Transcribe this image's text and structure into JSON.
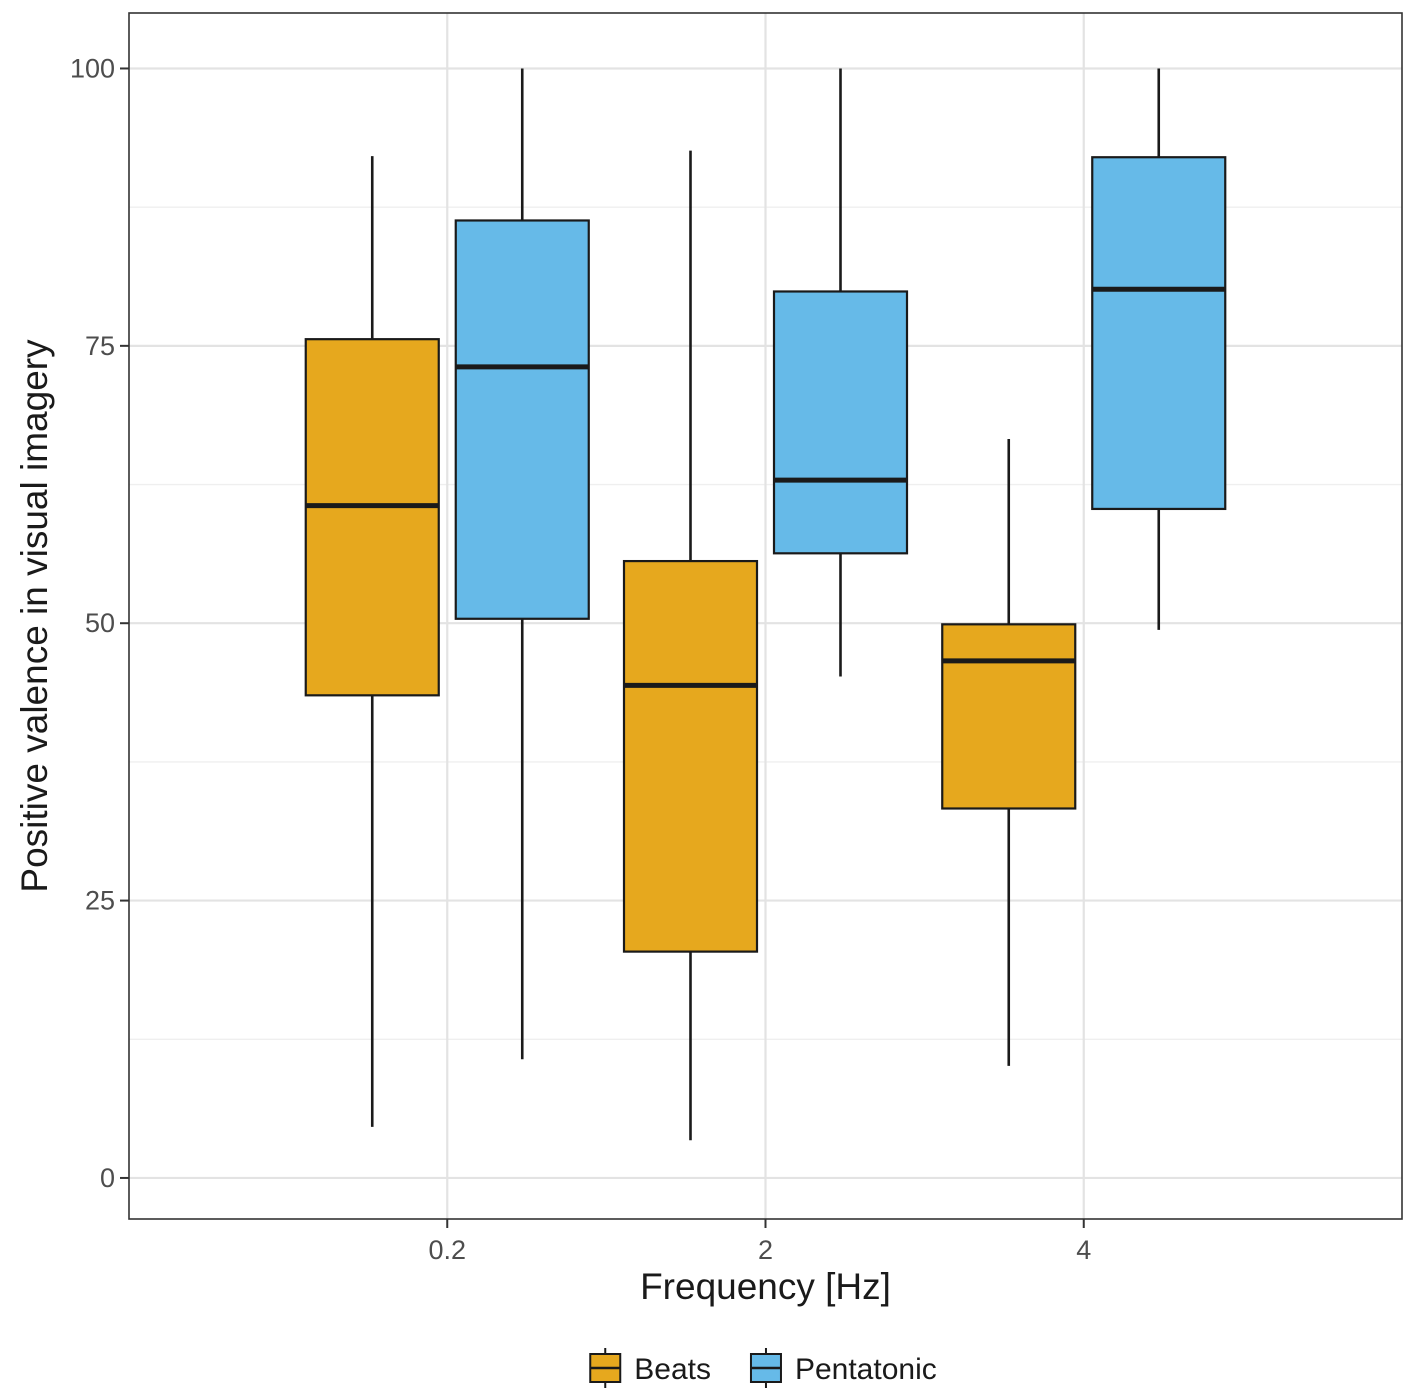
{
  "chart_data": {
    "type": "boxplot",
    "title": "",
    "xlabel": "Frequency [Hz]",
    "ylabel": "Positive valence in visual imagery",
    "categories": [
      "0.2",
      "2",
      "4"
    ],
    "ylim": [
      -3.7,
      105
    ],
    "yticks": [
      0,
      25,
      50,
      75,
      100
    ],
    "yticks_minor": [
      12.5,
      37.5,
      62.5,
      87.5
    ],
    "grid": true,
    "legend_position": "bottom",
    "series": [
      {
        "name": "Beats",
        "color": "#E6A81E",
        "boxes": [
          {
            "category": "0.2",
            "min": 4.6,
            "q1": 43.5,
            "median": 60.6,
            "q3": 75.6,
            "max": 92.1
          },
          {
            "category": "2",
            "min": 3.4,
            "q1": 20.4,
            "median": 44.4,
            "q3": 55.6,
            "max": 92.6
          },
          {
            "category": "4",
            "min": 10.1,
            "q1": 33.3,
            "median": 46.6,
            "q3": 49.9,
            "max": 66.6
          }
        ]
      },
      {
        "name": "Pentatonic",
        "color": "#66BAE8",
        "boxes": [
          {
            "category": "0.2",
            "min": 10.7,
            "q1": 50.4,
            "median": 73.1,
            "q3": 86.3,
            "max": 100
          },
          {
            "category": "2",
            "min": 45.2,
            "q1": 56.3,
            "median": 62.9,
            "q3": 79.9,
            "max": 100
          },
          {
            "category": "4",
            "min": 49.4,
            "q1": 60.3,
            "median": 80.1,
            "q3": 92.0,
            "max": 100
          }
        ]
      }
    ],
    "legend": [
      {
        "label": "Beats",
        "color": "#E6A81E"
      },
      {
        "label": "Pentatonic",
        "color": "#66BAE8"
      }
    ]
  }
}
